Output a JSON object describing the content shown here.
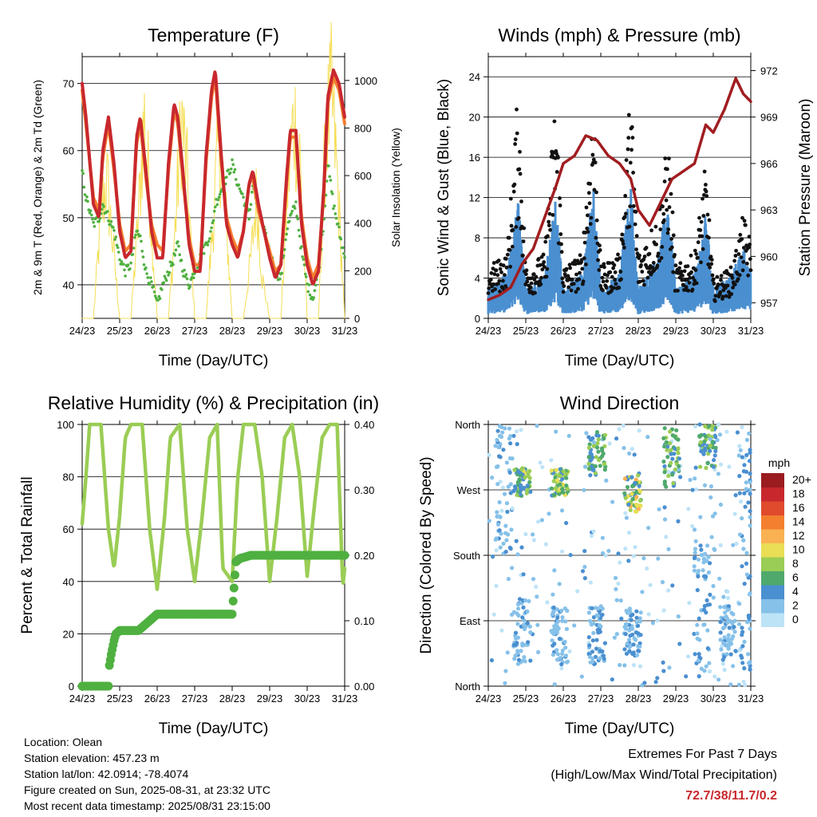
{
  "chart_data": [
    {
      "type": "line",
      "title": "Temperature (F)",
      "xlabel": "Time (Day/UTC)",
      "ylabel": "2m & 9m T (Red, Orange) & 2m Td (Green)",
      "y2label": "Solar Insolation (Yellow)",
      "x_ticks": [
        "24/23",
        "25/23",
        "26/23",
        "27/23",
        "28/23",
        "29/23",
        "30/23",
        "31/23"
      ],
      "ylim": [
        35,
        74
      ],
      "y_ticks": [
        40,
        50,
        60,
        70
      ],
      "y2lim": [
        0,
        1100
      ],
      "y2_ticks": [
        0,
        200,
        400,
        600,
        800,
        1000
      ],
      "colors": {
        "t2m": "#c8282d",
        "t9m": "#f47f2f",
        "td": "#4fb040",
        "solar": "#f5de55"
      },
      "series": [
        {
          "name": "2m T",
          "x": [
            0,
            0.1,
            0.3,
            0.45,
            0.55,
            0.7,
            0.85,
            1,
            1.15,
            1.3,
            1.45,
            1.55,
            1.7,
            1.85,
            2,
            2.15,
            2.3,
            2.45,
            2.55,
            2.7,
            2.85,
            3,
            3.15,
            3.3,
            3.45,
            3.55,
            3.7,
            3.85,
            4,
            4.15,
            4.3,
            4.45,
            4.55,
            4.7,
            4.85,
            5,
            5.15,
            5.3,
            5.45,
            5.55,
            5.7,
            5.85,
            6,
            6.15,
            6.3,
            6.45,
            6.55,
            6.7,
            6.85,
            7
          ],
          "values": [
            70,
            65,
            52,
            50,
            60,
            65,
            58,
            48,
            44,
            45,
            62,
            65,
            57,
            48,
            44,
            44,
            58,
            67,
            65,
            56,
            46,
            42,
            42,
            59,
            69,
            72,
            60,
            49,
            46,
            44,
            48,
            55,
            57,
            52,
            48,
            44,
            41,
            43,
            56,
            63,
            63,
            49,
            43,
            40,
            42,
            55,
            68,
            72,
            70,
            65
          ]
        },
        {
          "name": "9m T",
          "x": [
            0,
            0.1,
            0.3,
            0.45,
            0.55,
            0.7,
            0.85,
            1,
            1.15,
            1.3,
            1.45,
            1.55,
            1.7,
            1.85,
            2,
            2.15,
            2.3,
            2.45,
            2.55,
            2.7,
            2.85,
            3,
            3.15,
            3.3,
            3.45,
            3.55,
            3.7,
            3.85,
            4,
            4.15,
            4.3,
            4.45,
            4.55,
            4.7,
            4.85,
            5,
            5.15,
            5.3,
            5.45,
            5.55,
            5.7,
            5.85,
            6,
            6.15,
            6.3,
            6.45,
            6.55,
            6.7,
            6.85,
            7
          ],
          "values": [
            69,
            64,
            53,
            51,
            59,
            64,
            57,
            49,
            45,
            46,
            61,
            64,
            56,
            49,
            46,
            45,
            57,
            66,
            64,
            55,
            47,
            43,
            43,
            58,
            68,
            71,
            59,
            50,
            47,
            45,
            48,
            55,
            56,
            51,
            48,
            45,
            42,
            43,
            55,
            62,
            62,
            50,
            44,
            41,
            43,
            54,
            67,
            71,
            69,
            64
          ]
        },
        {
          "name": "2m Td",
          "x": [
            0,
            0.1,
            0.3,
            0.45,
            0.55,
            0.7,
            0.85,
            1,
            1.15,
            1.3,
            1.45,
            1.55,
            1.7,
            1.85,
            2,
            2.15,
            2.3,
            2.45,
            2.55,
            2.7,
            2.85,
            3,
            3.15,
            3.3,
            3.45,
            3.55,
            3.7,
            3.85,
            4,
            4.15,
            4.3,
            4.45,
            4.55,
            4.7,
            4.85,
            5,
            5.15,
            5.3,
            5.45,
            5.55,
            5.7,
            5.85,
            6,
            6.15,
            6.3,
            6.45,
            6.55,
            6.7,
            6.85,
            7
          ],
          "values": [
            57,
            53,
            49,
            50,
            52,
            50,
            48,
            44,
            42,
            43,
            48,
            47,
            42,
            40,
            37,
            40,
            42,
            44,
            46,
            42,
            40,
            42,
            44,
            46,
            48,
            52,
            54,
            56,
            58,
            55,
            53,
            50,
            55,
            51,
            48,
            45,
            42,
            41,
            48,
            50,
            52,
            45,
            40,
            38,
            42,
            50,
            58,
            52,
            48,
            44
          ]
        },
        {
          "name": "Solar",
          "x": [
            0,
            0.3,
            0.5,
            0.65,
            0.8,
            1,
            1.3,
            1.5,
            1.65,
            1.8,
            2,
            2.3,
            2.5,
            2.65,
            2.8,
            3,
            3.3,
            3.5,
            3.65,
            3.8,
            4,
            4.3,
            4.5,
            4.65,
            4.8,
            5,
            5.3,
            5.5,
            5.65,
            5.8,
            6,
            6.3,
            6.5,
            6.65,
            6.8,
            7
          ],
          "values": [
            0,
            0,
            500,
            700,
            400,
            0,
            0,
            500,
            1000,
            600,
            0,
            0,
            500,
            1000,
            700,
            0,
            0,
            500,
            900,
            600,
            0,
            0,
            300,
            600,
            200,
            0,
            0,
            700,
            1000,
            800,
            0,
            0,
            900,
            1100,
            700,
            0
          ]
        }
      ]
    },
    {
      "type": "line",
      "title": "Winds (mph) & Pressure (mb)",
      "xlabel": "Time (Day/UTC)",
      "ylabel": "Sonic Wind & Gust (Blue, Black)",
      "y2label": "Station Pressure (Maroon)",
      "x_ticks": [
        "24/23",
        "25/23",
        "26/23",
        "27/23",
        "28/23",
        "29/23",
        "30/23",
        "31/23"
      ],
      "ylim": [
        0,
        26
      ],
      "y_ticks": [
        0,
        4,
        8,
        12,
        16,
        20,
        24
      ],
      "y2lim": [
        956,
        972.9
      ],
      "y2_ticks": [
        957,
        960,
        963,
        966,
        969,
        972
      ],
      "colors": {
        "wind": "#4a8fd0",
        "gust": "#111111",
        "pressure": "#a11d20"
      },
      "series": [
        {
          "name": "Pressure",
          "x": [
            0,
            0.3,
            0.6,
            0.9,
            1.2,
            1.5,
            1.8,
            2,
            2.3,
            2.6,
            2.9,
            3.2,
            3.5,
            3.8,
            4,
            4.3,
            4.6,
            4.9,
            5.2,
            5.5,
            5.8,
            6,
            6.3,
            6.6,
            6.8,
            7
          ],
          "values": [
            957.2,
            957.5,
            958,
            959.5,
            960.5,
            962.5,
            964.5,
            966,
            966.5,
            967.8,
            967.5,
            966.5,
            966,
            965,
            963,
            962,
            963.5,
            965,
            965.5,
            966,
            968.5,
            968,
            969.5,
            971.5,
            970.5,
            970
          ]
        },
        {
          "name": "Wind",
          "x": [
            0,
            0.5,
            0.8,
            1,
            1.5,
            1.8,
            2,
            2.5,
            2.8,
            3,
            3.5,
            3.8,
            4,
            4.5,
            4.8,
            5,
            5.5,
            5.8,
            6,
            6.5,
            6.8,
            7
          ],
          "values": [
            2,
            3,
            8,
            2,
            3,
            8,
            2,
            3,
            9,
            2,
            3,
            9,
            2,
            4,
            8,
            2,
            3,
            7,
            2,
            3,
            5,
            3
          ]
        },
        {
          "name": "Gust",
          "x": [
            0,
            0.5,
            0.8,
            1,
            1.5,
            1.8,
            2,
            2.5,
            2.8,
            3,
            3.5,
            3.8,
            4,
            4.5,
            4.8,
            5,
            5.5,
            5.8,
            6,
            6.5,
            6.8,
            7
          ],
          "values": [
            4,
            5,
            18,
            4,
            5,
            18,
            4,
            5,
            18,
            4,
            5,
            18,
            5,
            8,
            14,
            4,
            5,
            12,
            3,
            4,
            8,
            6
          ]
        }
      ]
    },
    {
      "type": "line",
      "title": "Relative Humidity (%) & Precipitation (in)",
      "xlabel": "Time (Day/UTC)",
      "ylabel": "Percent & Total Rainfall",
      "x_ticks": [
        "24/23",
        "25/23",
        "26/23",
        "27/23",
        "28/23",
        "29/23",
        "30/23",
        "31/23"
      ],
      "ylim": [
        0,
        100
      ],
      "y_ticks": [
        0,
        20,
        40,
        60,
        80,
        100
      ],
      "y2lim": [
        0,
        0.4
      ],
      "y2_ticks": [
        "0.00",
        "0.10",
        "0.20",
        "0.30",
        "0.40"
      ],
      "colors": {
        "rh": "#9acd55",
        "precip": "#4fb040"
      },
      "series": [
        {
          "name": "RH",
          "x": [
            0,
            0.1,
            0.2,
            0.5,
            0.7,
            0.85,
            1.0,
            1.15,
            1.3,
            1.6,
            1.8,
            2.0,
            2.2,
            2.35,
            2.6,
            2.8,
            3.0,
            3.2,
            3.4,
            3.6,
            3.75,
            4.0,
            4.15,
            4.3,
            4.6,
            4.8,
            5.0,
            5.2,
            5.4,
            5.6,
            5.8,
            6.0,
            6.2,
            6.4,
            6.6,
            6.8,
            6.95,
            7
          ],
          "values": [
            62,
            80,
            100,
            100,
            60,
            45,
            65,
            95,
            100,
            100,
            60,
            37,
            65,
            95,
            100,
            60,
            40,
            65,
            95,
            100,
            45,
            40,
            80,
            100,
            100,
            80,
            40,
            65,
            95,
            100,
            80,
            42,
            70,
            95,
            100,
            100,
            38,
            45
          ]
        },
        {
          "name": "Precip",
          "x": [
            0,
            0.7,
            0.72,
            0.78,
            0.85,
            0.9,
            1.0,
            1.5,
            2.0,
            2.5,
            3.0,
            3.5,
            4.0,
            4.05,
            4.1,
            4.2,
            4.5,
            5,
            6,
            7
          ],
          "values": [
            0,
            0,
            0.03,
            0.05,
            0.07,
            0.08,
            0.085,
            0.085,
            0.11,
            0.11,
            0.11,
            0.11,
            0.11,
            0.15,
            0.19,
            0.195,
            0.2,
            0.2,
            0.2,
            0.2
          ]
        }
      ]
    },
    {
      "type": "scatter",
      "title": "Wind Direction",
      "xlabel": "Time (Day/UTC)",
      "ylabel": "Direction (Colored By Speed)",
      "x_ticks": [
        "24/23",
        "25/23",
        "26/23",
        "27/23",
        "28/23",
        "29/23",
        "30/23",
        "31/23"
      ],
      "y_ticks": [
        "North",
        "East",
        "South",
        "West",
        "North"
      ],
      "legend": {
        "title": "mph",
        "labels": [
          "0",
          "2",
          "4",
          "6",
          "8",
          "10",
          "12",
          "14",
          "16",
          "18",
          "20+"
        ],
        "colors": [
          "#bde3f7",
          "#86c1e9",
          "#4a8fd0",
          "#4fa96d",
          "#9acd55",
          "#e9de55",
          "#f9b152",
          "#f47f2f",
          "#e04a2d",
          "#c8282d",
          "#9a1c1f"
        ]
      },
      "clusters": [
        {
          "x": 0.4,
          "dir_range": [
            180,
            360
          ],
          "speed": 3
        },
        {
          "x": 0.9,
          "dir_range": [
            260,
            300
          ],
          "speed": 8
        },
        {
          "x": 0.9,
          "dir_range": [
            30,
            120
          ],
          "speed": 3
        },
        {
          "x": 1.9,
          "dir_range": [
            260,
            300
          ],
          "speed": 9
        },
        {
          "x": 1.9,
          "dir_range": [
            30,
            110
          ],
          "speed": 3
        },
        {
          "x": 2.9,
          "dir_range": [
            290,
            350
          ],
          "speed": 7
        },
        {
          "x": 2.9,
          "dir_range": [
            30,
            110
          ],
          "speed": 4
        },
        {
          "x": 3.85,
          "dir_range": [
            240,
            290
          ],
          "speed": 10
        },
        {
          "x": 3.85,
          "dir_range": [
            40,
            110
          ],
          "speed": 4
        },
        {
          "x": 4.9,
          "dir_range": [
            270,
            355
          ],
          "speed": 7
        },
        {
          "x": 5.7,
          "dir_range": [
            20,
            200
          ],
          "speed": 4
        },
        {
          "x": 5.85,
          "dir_range": [
            300,
            360
          ],
          "speed": 7
        },
        {
          "x": 6.4,
          "dir_range": [
            40,
            110
          ],
          "speed": 3
        },
        {
          "x": 6.9,
          "dir_range": [
            20,
            350
          ],
          "speed": 4
        }
      ]
    }
  ],
  "info": {
    "location": "Location: Olean",
    "elevation": "Station elevation: 457.23 m",
    "latlon": "Station lat/lon: 42.0914; -78.4074",
    "created": "Figure created on Sun, 2025-08-31, at 23:32 UTC",
    "recent": "Most recent data timestamp: 2025/08/31 23:15:00"
  },
  "extremes": {
    "title": "Extremes For Past 7 Days",
    "subtitle": "(High/Low/Max Wind/Total Precipitation)",
    "value": "72.7/38/11.7/0.2"
  }
}
